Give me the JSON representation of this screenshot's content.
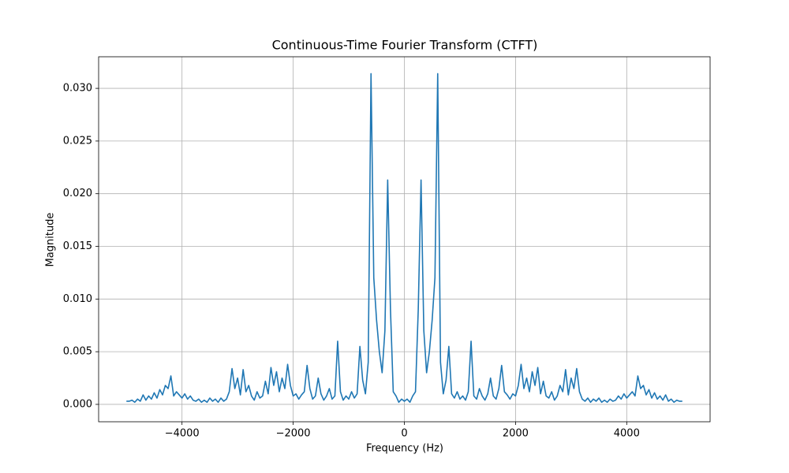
{
  "chart_data": {
    "type": "line",
    "title": "Continuous-Time Fourier Transform (CTFT)",
    "x_label": "Frequency (Hz)",
    "y_label": "Magnitude",
    "color": "#1f77b4",
    "grid": true,
    "xlim": [
      -5500,
      5500
    ],
    "ylim": [
      -0.00165,
      0.033
    ],
    "xticks": [
      {
        "value": -4000,
        "label": "−4000"
      },
      {
        "value": -2000,
        "label": "−2000"
      },
      0,
      2000,
      4000
    ],
    "yticks": [
      {
        "value": 0,
        "label": "0.000"
      },
      {
        "value": 0.005,
        "label": "0.005"
      },
      {
        "value": 0.01,
        "label": "0.010"
      },
      {
        "value": 0.015,
        "label": "0.015"
      },
      {
        "value": 0.02,
        "label": "0.020"
      },
      {
        "value": 0.025,
        "label": "0.025"
      },
      {
        "value": 0.03,
        "label": "0.030"
      }
    ],
    "x": [
      -5000,
      -4950,
      -4900,
      -4850,
      -4800,
      -4750,
      -4700,
      -4650,
      -4600,
      -4550,
      -4500,
      -4450,
      -4400,
      -4350,
      -4300,
      -4250,
      -4200,
      -4150,
      -4100,
      -4050,
      -4000,
      -3950,
      -3900,
      -3850,
      -3800,
      -3750,
      -3700,
      -3650,
      -3600,
      -3550,
      -3500,
      -3450,
      -3400,
      -3350,
      -3300,
      -3250,
      -3200,
      -3150,
      -3100,
      -3050,
      -3000,
      -2950,
      -2900,
      -2850,
      -2800,
      -2750,
      -2700,
      -2650,
      -2600,
      -2550,
      -2500,
      -2450,
      -2400,
      -2350,
      -2300,
      -2250,
      -2200,
      -2150,
      -2100,
      -2050,
      -2000,
      -1950,
      -1900,
      -1850,
      -1800,
      -1750,
      -1700,
      -1650,
      -1600,
      -1550,
      -1500,
      -1450,
      -1400,
      -1350,
      -1300,
      -1250,
      -1200,
      -1150,
      -1100,
      -1050,
      -1000,
      -950,
      -900,
      -850,
      -800,
      -750,
      -700,
      -650,
      -600,
      -550,
      -500,
      -450,
      -400,
      -350,
      -300,
      -250,
      -200,
      -150,
      -100,
      -50,
      0,
      50,
      100,
      150,
      200,
      250,
      300,
      350,
      400,
      450,
      500,
      550,
      600,
      650,
      700,
      750,
      800,
      850,
      900,
      950,
      1000,
      1050,
      1100,
      1150,
      1200,
      1250,
      1300,
      1350,
      1400,
      1450,
      1500,
      1550,
      1600,
      1650,
      1700,
      1750,
      1800,
      1850,
      1900,
      1950,
      2000,
      2050,
      2100,
      2150,
      2200,
      2250,
      2300,
      2350,
      2400,
      2450,
      2500,
      2550,
      2600,
      2650,
      2700,
      2750,
      2800,
      2850,
      2900,
      2950,
      3000,
      3050,
      3100,
      3150,
      3200,
      3250,
      3300,
      3350,
      3400,
      3450,
      3500,
      3550,
      3600,
      3650,
      3700,
      3750,
      3800,
      3850,
      3900,
      3950,
      4000,
      4050,
      4100,
      4150,
      4200,
      4250,
      4300,
      4350,
      4400,
      4450,
      4500,
      4550,
      4600,
      4650,
      4700,
      4750,
      4800,
      4850,
      4900,
      4950,
      5000
    ],
    "values": [
      0.0003,
      0.0003,
      0.0004,
      0.0002,
      0.0005,
      0.0003,
      0.0009,
      0.0004,
      0.0008,
      0.0005,
      0.0011,
      0.0006,
      0.0014,
      0.0009,
      0.0018,
      0.0015,
      0.0027,
      0.0008,
      0.0012,
      0.0009,
      0.0006,
      0.001,
      0.0005,
      0.0008,
      0.0004,
      0.0003,
      0.0005,
      0.0002,
      0.0004,
      0.0002,
      0.0006,
      0.0003,
      0.0005,
      0.0002,
      0.0006,
      0.0003,
      0.0005,
      0.0012,
      0.0034,
      0.0015,
      0.0025,
      0.0009,
      0.0033,
      0.0012,
      0.0018,
      0.0008,
      0.0004,
      0.0012,
      0.0006,
      0.0008,
      0.0022,
      0.001,
      0.0035,
      0.0018,
      0.0031,
      0.0012,
      0.0025,
      0.0015,
      0.0038,
      0.0018,
      0.0008,
      0.001,
      0.0005,
      0.0009,
      0.0012,
      0.0037,
      0.0015,
      0.0005,
      0.0008,
      0.0025,
      0.001,
      0.0004,
      0.0008,
      0.0015,
      0.0005,
      0.0008,
      0.006,
      0.0012,
      0.0004,
      0.0008,
      0.0005,
      0.0012,
      0.0006,
      0.001,
      0.0055,
      0.0023,
      0.001,
      0.004,
      0.0314,
      0.012,
      0.008,
      0.005,
      0.003,
      0.007,
      0.0213,
      0.009,
      0.0012,
      0.0008,
      0.0002,
      0.0005,
      0.0003,
      0.0005,
      0.0002,
      0.0008,
      0.0012,
      0.009,
      0.0213,
      0.007,
      0.003,
      0.005,
      0.008,
      0.012,
      0.0314,
      0.004,
      0.001,
      0.0023,
      0.0055,
      0.001,
      0.0006,
      0.0012,
      0.0005,
      0.0008,
      0.0004,
      0.0012,
      0.006,
      0.0008,
      0.0005,
      0.0015,
      0.0008,
      0.0004,
      0.001,
      0.0025,
      0.0008,
      0.0005,
      0.0015,
      0.0037,
      0.0012,
      0.0009,
      0.0005,
      0.001,
      0.0008,
      0.0018,
      0.0038,
      0.0015,
      0.0025,
      0.0012,
      0.0031,
      0.0018,
      0.0035,
      0.001,
      0.0022,
      0.0008,
      0.0006,
      0.0012,
      0.0004,
      0.0008,
      0.0018,
      0.0012,
      0.0033,
      0.0009,
      0.0025,
      0.0015,
      0.0034,
      0.0012,
      0.0005,
      0.0003,
      0.0006,
      0.0002,
      0.0005,
      0.0003,
      0.0006,
      0.0002,
      0.0004,
      0.0002,
      0.0005,
      0.0003,
      0.0004,
      0.0008,
      0.0005,
      0.001,
      0.0006,
      0.0009,
      0.0012,
      0.0008,
      0.0027,
      0.0015,
      0.0018,
      0.0009,
      0.0014,
      0.0006,
      0.0011,
      0.0005,
      0.0008,
      0.0004,
      0.0009,
      0.0003,
      0.0005,
      0.0002,
      0.0004,
      0.0003,
      0.0003
    ]
  }
}
